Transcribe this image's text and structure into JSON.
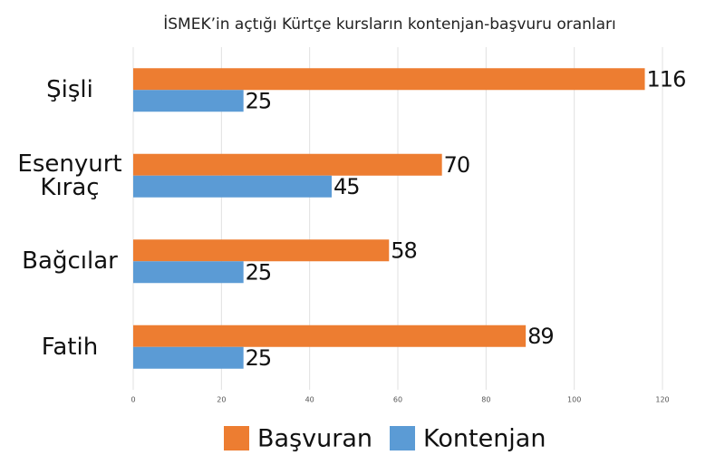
{
  "chart_data": {
    "type": "hbar",
    "title": "İSMEK’in açtığı Kürtçe kursların kontenjan-başvuru oranları",
    "categories": [
      "Şişli",
      "Esenyurt Kıraç",
      "Bağcılar",
      "Fatih"
    ],
    "series": [
      {
        "name": "Başvuran",
        "color": "#ed7d31",
        "values": [
          116,
          70,
          58,
          89
        ]
      },
      {
        "name": "Kontenjan",
        "color": "#5b9bd5",
        "values": [
          25,
          45,
          25,
          25
        ]
      }
    ],
    "xlim": [
      0,
      120
    ],
    "xticks": [
      0,
      20,
      40,
      60,
      80,
      100,
      120
    ],
    "grid": true,
    "legend": "bottom"
  }
}
